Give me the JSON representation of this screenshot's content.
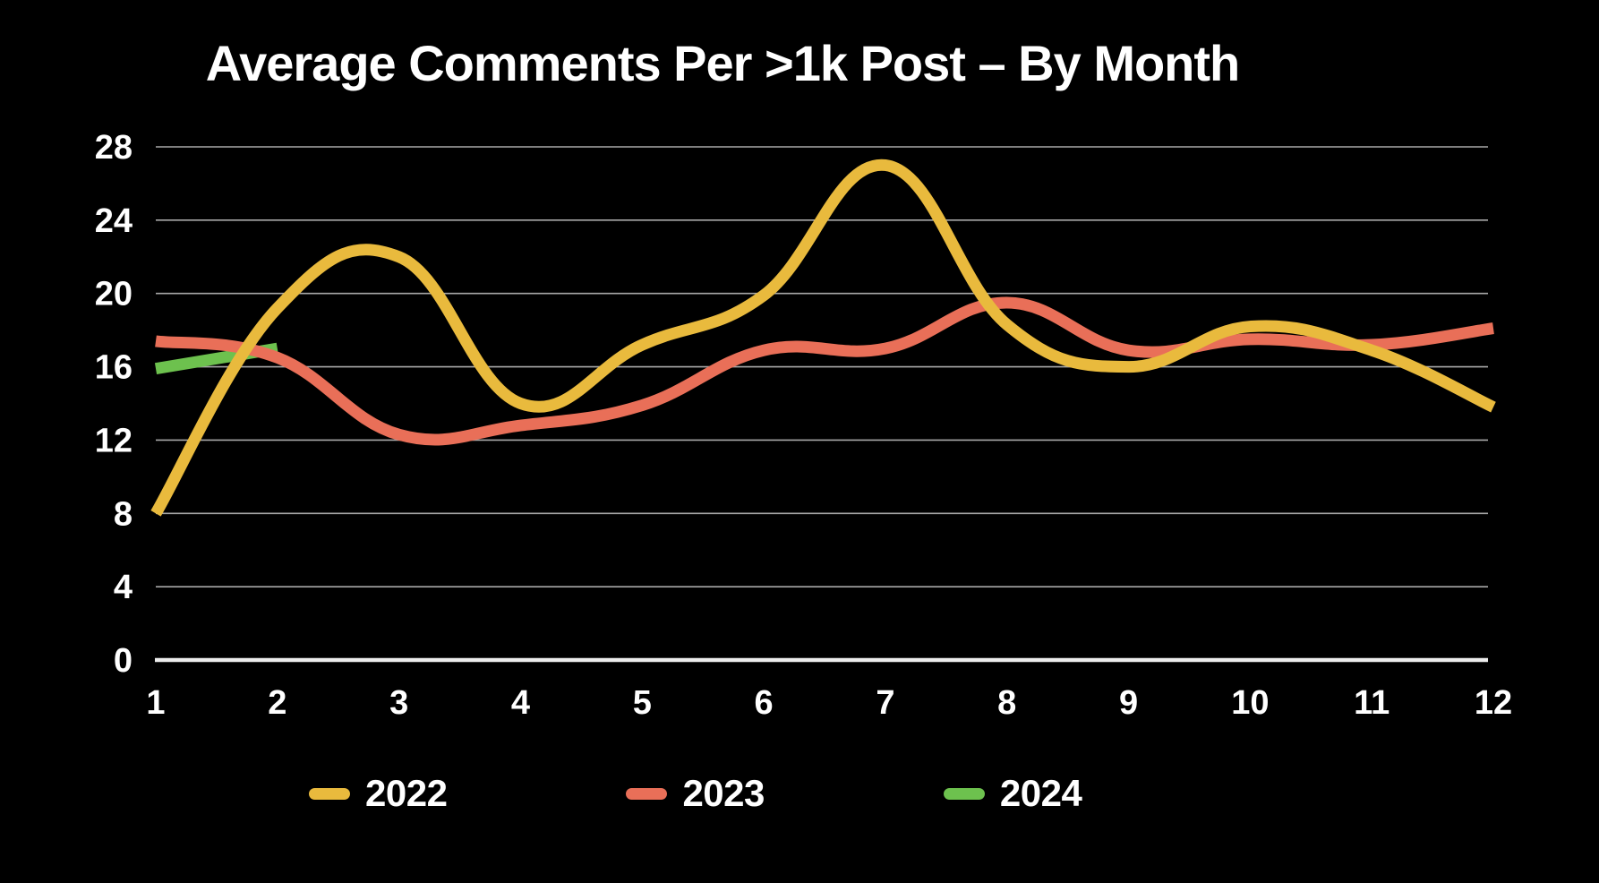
{
  "title": "Average Comments Per >1k Post – By Month",
  "chart_data": {
    "type": "line",
    "title": "Average Comments Per >1k Post – By Month",
    "categories": [
      1,
      2,
      3,
      4,
      5,
      6,
      7,
      8,
      9,
      10,
      11,
      12
    ],
    "series": [
      {
        "name": "2022",
        "color": "#e9ba3d",
        "values": [
          8,
          19.2,
          22,
          14,
          17.2,
          19.9,
          27,
          18.3,
          16,
          18.2,
          16.9,
          13.8
        ]
      },
      {
        "name": "2023",
        "color": "#e96f58",
        "values": [
          17.4,
          16.5,
          12.3,
          12.8,
          13.9,
          16.9,
          17,
          19.5,
          16.9,
          17.5,
          17.2,
          18.1
        ]
      },
      {
        "name": "2024",
        "color": "#6dc14e",
        "values": [
          15.9,
          17
        ]
      }
    ],
    "xlabel": "",
    "ylabel": "",
    "ylim": [
      0,
      28
    ],
    "yticks": [
      0,
      4,
      8,
      12,
      16,
      20,
      24,
      28
    ],
    "grid": true,
    "legend_position": "bottom",
    "colors": {
      "background": "#000000",
      "text": "#ffffff",
      "gridline": "#c6c6c6",
      "axis_line": "#ececec"
    }
  }
}
